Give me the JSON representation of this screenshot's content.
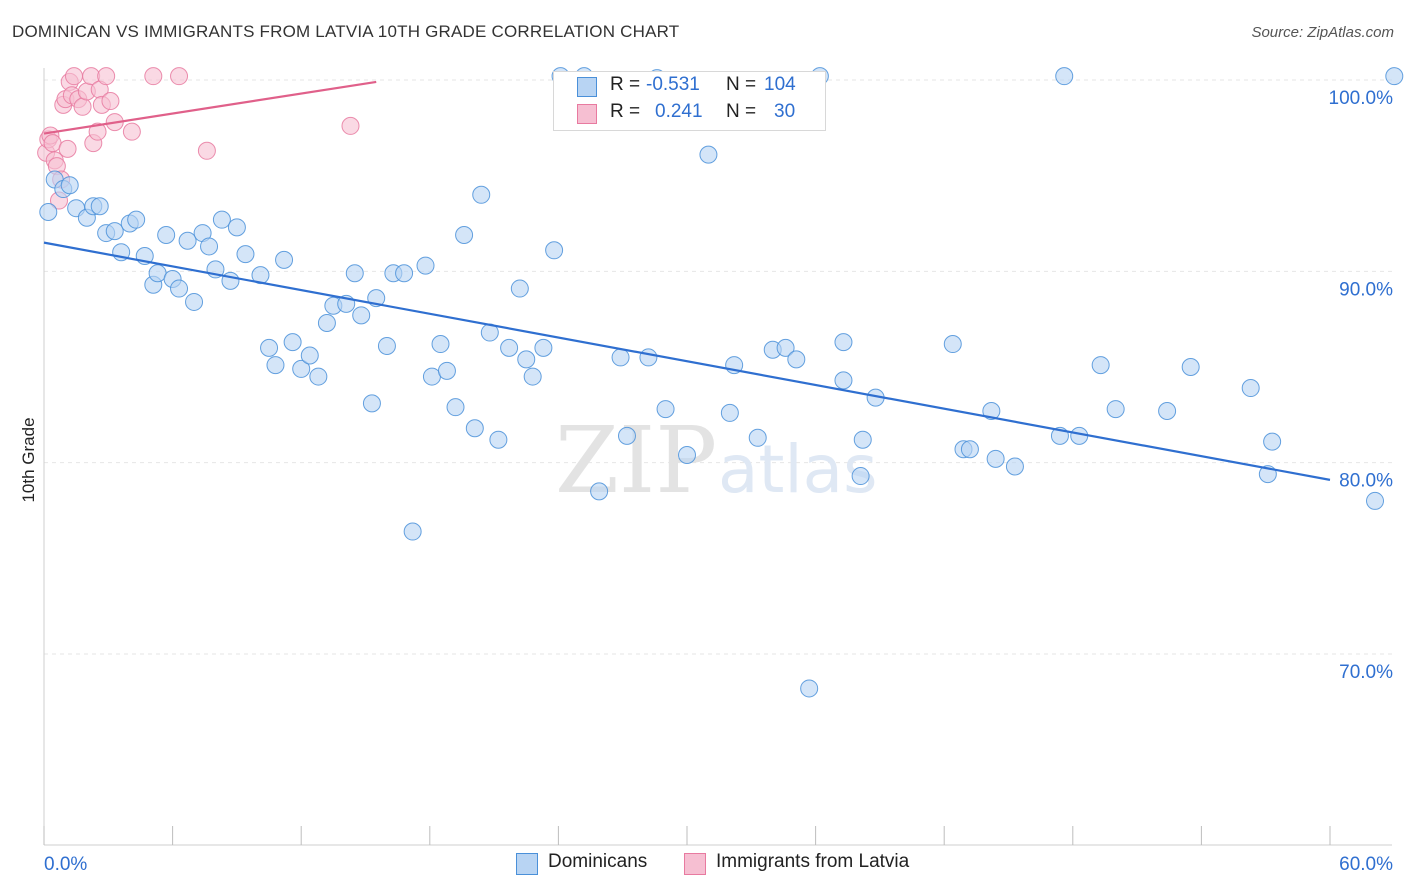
{
  "title": "DOMINICAN VS IMMIGRANTS FROM LATVIA 10TH GRADE CORRELATION CHART",
  "source": "Source: ZipAtlas.com",
  "watermark": {
    "zip": "ZIP",
    "atlas": "atlas"
  },
  "stats": {
    "rows": [
      {
        "r_label": "R =",
        "r_value": "-0.531",
        "n_label": "N =",
        "n_value": "104",
        "color": "#4a90d9",
        "fill": "#b8d4f3"
      },
      {
        "r_label": "R =",
        "r_value": "0.241",
        "n_label": "N =",
        "n_value": "30",
        "color": "#e87aa0",
        "fill": "#f6bfd2"
      }
    ]
  },
  "legend": {
    "items": [
      {
        "label": "Dominicans",
        "color": "#4a90d9",
        "fill": "#b8d4f3"
      },
      {
        "label": "Immigrants from Latvia",
        "color": "#e87aa0",
        "fill": "#f6bfd2"
      }
    ]
  },
  "chart_data": {
    "type": "scatter",
    "title": "DOMINICAN VS IMMIGRANTS FROM LATVIA 10TH GRADE CORRELATION CHART",
    "xlabel": "",
    "ylabel": "10th Grade",
    "xlim": [
      0,
      60
    ],
    "ylim": [
      59.5,
      103.5
    ],
    "x_tick_labels": [
      "0.0%",
      "60.0%"
    ],
    "y_ticks": [
      70,
      80,
      90,
      100
    ],
    "y_tick_labels": [
      "70.0%",
      "80.0%",
      "90.0%",
      "100.0%"
    ],
    "grid": true,
    "legend_position": "bottom-center",
    "series": [
      {
        "name": "Dominicans",
        "color": "#4a90d9",
        "fill": "#b8d4f3",
        "trend": {
          "x": [
            0,
            60
          ],
          "y": [
            91.5,
            79.1
          ],
          "color": "#2f6fd0"
        },
        "points": [
          [
            0.2,
            93.1
          ],
          [
            0.5,
            94.8
          ],
          [
            0.9,
            94.3
          ],
          [
            1.2,
            94.5
          ],
          [
            1.5,
            93.3
          ],
          [
            2.0,
            92.8
          ],
          [
            2.3,
            93.4
          ],
          [
            2.6,
            93.4
          ],
          [
            2.9,
            92.0
          ],
          [
            3.3,
            92.1
          ],
          [
            3.6,
            91.0
          ],
          [
            4.0,
            92.5
          ],
          [
            4.3,
            92.7
          ],
          [
            4.7,
            90.8
          ],
          [
            5.1,
            89.3
          ],
          [
            5.3,
            89.9
          ],
          [
            5.7,
            91.9
          ],
          [
            6.0,
            89.6
          ],
          [
            6.3,
            89.1
          ],
          [
            6.7,
            91.6
          ],
          [
            7.0,
            88.4
          ],
          [
            7.4,
            92.0
          ],
          [
            7.7,
            91.3
          ],
          [
            8.0,
            90.1
          ],
          [
            8.3,
            92.7
          ],
          [
            8.7,
            89.5
          ],
          [
            9.0,
            92.3
          ],
          [
            9.4,
            90.9
          ],
          [
            10.1,
            89.8
          ],
          [
            10.5,
            86.0
          ],
          [
            10.8,
            85.1
          ],
          [
            11.2,
            90.6
          ],
          [
            11.6,
            86.3
          ],
          [
            12.0,
            84.9
          ],
          [
            12.4,
            85.6
          ],
          [
            12.8,
            84.5
          ],
          [
            13.2,
            87.3
          ],
          [
            13.5,
            88.2
          ],
          [
            14.1,
            88.3
          ],
          [
            14.5,
            89.9
          ],
          [
            14.8,
            87.7
          ],
          [
            15.3,
            83.1
          ],
          [
            15.5,
            88.6
          ],
          [
            16.0,
            86.1
          ],
          [
            16.3,
            89.9
          ],
          [
            16.8,
            89.9
          ],
          [
            17.2,
            76.4
          ],
          [
            17.8,
            90.3
          ],
          [
            18.1,
            84.5
          ],
          [
            18.5,
            86.2
          ],
          [
            18.8,
            84.8
          ],
          [
            19.2,
            82.9
          ],
          [
            19.6,
            91.9
          ],
          [
            20.1,
            81.8
          ],
          [
            20.4,
            94.0
          ],
          [
            20.8,
            86.8
          ],
          [
            21.2,
            81.2
          ],
          [
            21.7,
            86.0
          ],
          [
            22.2,
            89.1
          ],
          [
            22.5,
            85.4
          ],
          [
            22.8,
            84.5
          ],
          [
            23.3,
            86.0
          ],
          [
            23.8,
            91.1
          ],
          [
            24.1,
            100.2
          ],
          [
            25.2,
            100.2
          ],
          [
            25.9,
            78.5
          ],
          [
            26.9,
            85.5
          ],
          [
            27.2,
            81.4
          ],
          [
            28.2,
            85.5
          ],
          [
            28.6,
            100.1
          ],
          [
            29.0,
            82.8
          ],
          [
            30.0,
            80.4
          ],
          [
            31.0,
            96.1
          ],
          [
            32.0,
            82.6
          ],
          [
            32.2,
            85.1
          ],
          [
            33.3,
            81.3
          ],
          [
            34.0,
            85.9
          ],
          [
            34.6,
            86.0
          ],
          [
            35.1,
            85.4
          ],
          [
            35.7,
            68.2
          ],
          [
            36.2,
            100.2
          ],
          [
            37.3,
            84.3
          ],
          [
            37.3,
            86.3
          ],
          [
            38.1,
            79.3
          ],
          [
            38.2,
            81.2
          ],
          [
            38.8,
            83.4
          ],
          [
            42.4,
            86.2
          ],
          [
            42.9,
            80.7
          ],
          [
            43.2,
            80.7
          ],
          [
            44.2,
            82.7
          ],
          [
            44.4,
            80.2
          ],
          [
            45.3,
            79.8
          ],
          [
            47.4,
            81.4
          ],
          [
            47.6,
            100.2
          ],
          [
            48.3,
            81.4
          ],
          [
            49.3,
            85.1
          ],
          [
            50.0,
            82.8
          ],
          [
            52.4,
            82.7
          ],
          [
            53.5,
            85.0
          ],
          [
            56.3,
            83.9
          ],
          [
            57.1,
            79.4
          ],
          [
            57.3,
            81.1
          ],
          [
            62.1,
            78.0
          ],
          [
            63.0,
            100.2
          ]
        ]
      },
      {
        "name": "Immigrants from Latvia",
        "color": "#e87aa0",
        "fill": "#f6bfd2",
        "trend": {
          "x": [
            0,
            15.5
          ],
          "y": [
            97.2,
            99.9
          ],
          "color": "#e0608a"
        },
        "points": [
          [
            0.1,
            96.2
          ],
          [
            0.2,
            96.9
          ],
          [
            0.3,
            97.1
          ],
          [
            0.4,
            96.7
          ],
          [
            0.5,
            95.8
          ],
          [
            0.6,
            95.5
          ],
          [
            0.7,
            93.7
          ],
          [
            0.8,
            94.8
          ],
          [
            0.9,
            98.7
          ],
          [
            1.0,
            99.0
          ],
          [
            1.1,
            96.4
          ],
          [
            1.2,
            99.9
          ],
          [
            1.3,
            99.2
          ],
          [
            1.4,
            100.2
          ],
          [
            1.6,
            99.0
          ],
          [
            1.8,
            98.6
          ],
          [
            2.0,
            99.4
          ],
          [
            2.2,
            100.2
          ],
          [
            2.3,
            96.7
          ],
          [
            2.5,
            97.3
          ],
          [
            2.6,
            99.5
          ],
          [
            2.7,
            98.7
          ],
          [
            2.9,
            100.2
          ],
          [
            3.1,
            98.9
          ],
          [
            3.3,
            97.8
          ],
          [
            4.1,
            97.3
          ],
          [
            5.1,
            100.2
          ],
          [
            6.3,
            100.2
          ],
          [
            7.6,
            96.3
          ],
          [
            14.3,
            97.6
          ]
        ]
      }
    ]
  }
}
